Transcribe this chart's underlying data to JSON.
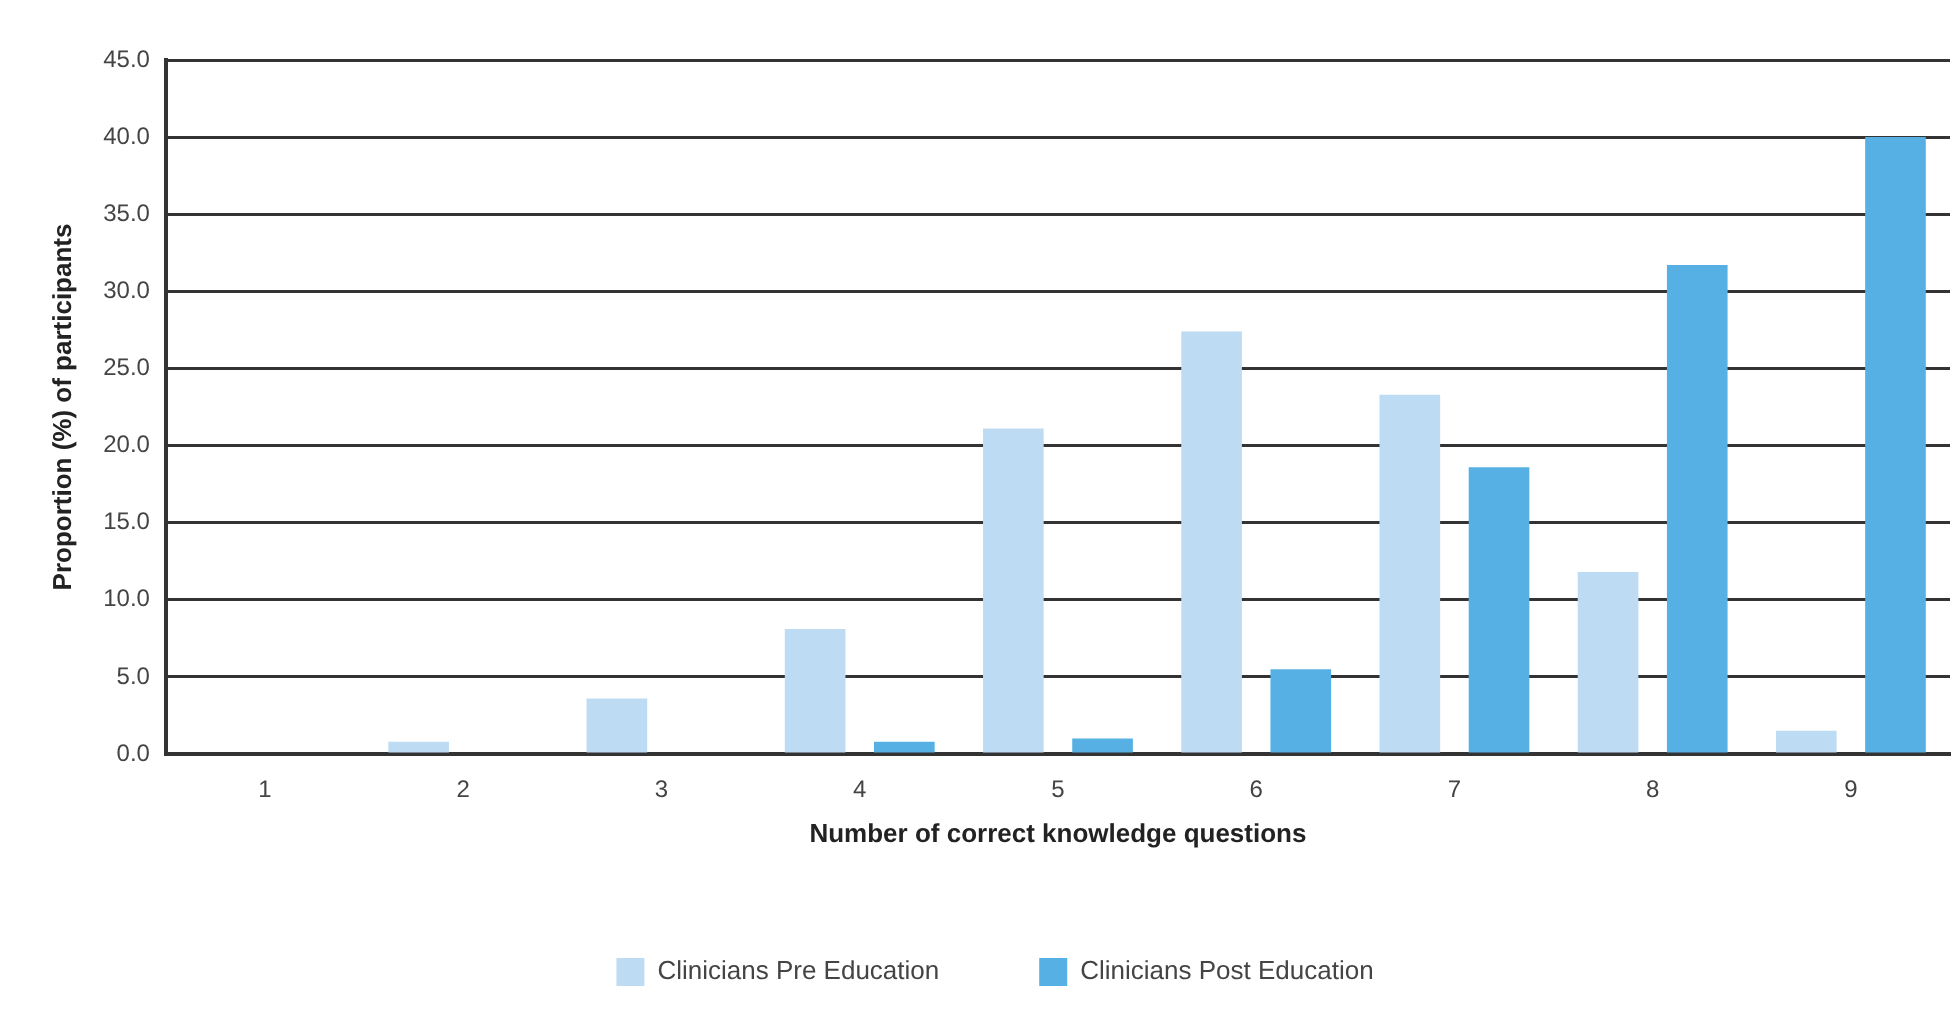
{
  "chart_data": {
    "type": "bar",
    "xlabel": "Number of correct knowledge questions",
    "ylabel": "Proportion (%) of participants",
    "categories": [
      "1",
      "2",
      "3",
      "4",
      "5",
      "6",
      "7",
      "8",
      "9"
    ],
    "series": [
      {
        "name": "Clinicians Pre Education",
        "color": "#bddcf4",
        "values": [
          0,
          0.8,
          3.6,
          8.1,
          21.1,
          27.4,
          23.3,
          11.8,
          1.5
        ]
      },
      {
        "name": "Clinicians Post Education",
        "color": "#56b0e3",
        "values": [
          0,
          0,
          0,
          0.8,
          1.0,
          5.5,
          18.6,
          31.7,
          40.0
        ]
      }
    ],
    "ylim": [
      0,
      45
    ],
    "yticks": [
      {
        "value": 0,
        "label": "0.0"
      },
      {
        "value": 5,
        "label": "5.0"
      },
      {
        "value": 10,
        "label": "10.0"
      },
      {
        "value": 15,
        "label": "15.0"
      },
      {
        "value": 20,
        "label": "20.0"
      },
      {
        "value": 25,
        "label": "25.0"
      },
      {
        "value": 30,
        "label": "30.0"
      },
      {
        "value": 35,
        "label": "35.0"
      },
      {
        "value": 40,
        "label": "40.0"
      },
      {
        "value": 45,
        "label": "45.0"
      }
    ],
    "grid": "y",
    "legend": "bottom"
  }
}
